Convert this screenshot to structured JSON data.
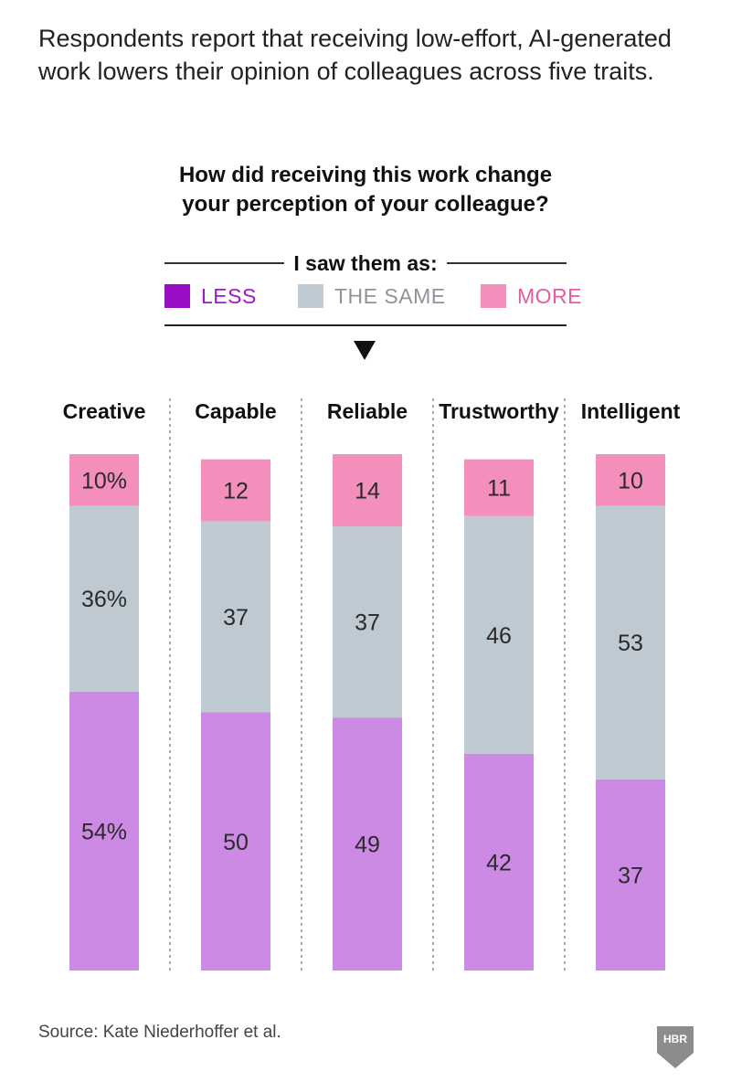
{
  "intro": "Respondents report that receiving low-effort, AI-generated work lowers their opinion of colleagues across five traits.",
  "question": {
    "line1": "How did receiving this work change",
    "line2": "your perception of your colleague?"
  },
  "legend": {
    "heading": "I saw them as:",
    "items": [
      {
        "label": "LESS",
        "swatch": "#9b0fc4",
        "text_color": "#a018c8"
      },
      {
        "label": "THE SAME",
        "swatch": "#bec9d1",
        "text_color": "#8e9499"
      },
      {
        "label": "MORE",
        "swatch": "#f48fbd",
        "text_color": "#e35ca0"
      }
    ]
  },
  "chart_data": {
    "type": "bar",
    "stacked": true,
    "title": "How did receiving this work change your perception of your colleague?",
    "categories": [
      "Creative",
      "Capable",
      "Reliable",
      "Trustworthy",
      "Intelligent"
    ],
    "series": [
      {
        "name": "LESS",
        "color": "#cd8ae5",
        "values": [
          54,
          50,
          49,
          42,
          37
        ],
        "labels": [
          "54%",
          "50",
          "49",
          "42",
          "37"
        ]
      },
      {
        "name": "THE SAME",
        "color": "#bec9d1",
        "values": [
          36,
          37,
          37,
          46,
          53
        ],
        "labels": [
          "36%",
          "37",
          "37",
          "46",
          "53"
        ]
      },
      {
        "name": "MORE",
        "color": "#f48fbd",
        "values": [
          10,
          12,
          14,
          11,
          10
        ],
        "labels": [
          "10%",
          "12",
          "14",
          "11",
          "10"
        ]
      }
    ],
    "ylim": [
      0,
      100
    ],
    "xlabel": "",
    "ylabel": ""
  },
  "source": "Source: Kate Niederhoffer et al.",
  "logo": {
    "text": "HBR",
    "color": "#8c8c8c"
  }
}
